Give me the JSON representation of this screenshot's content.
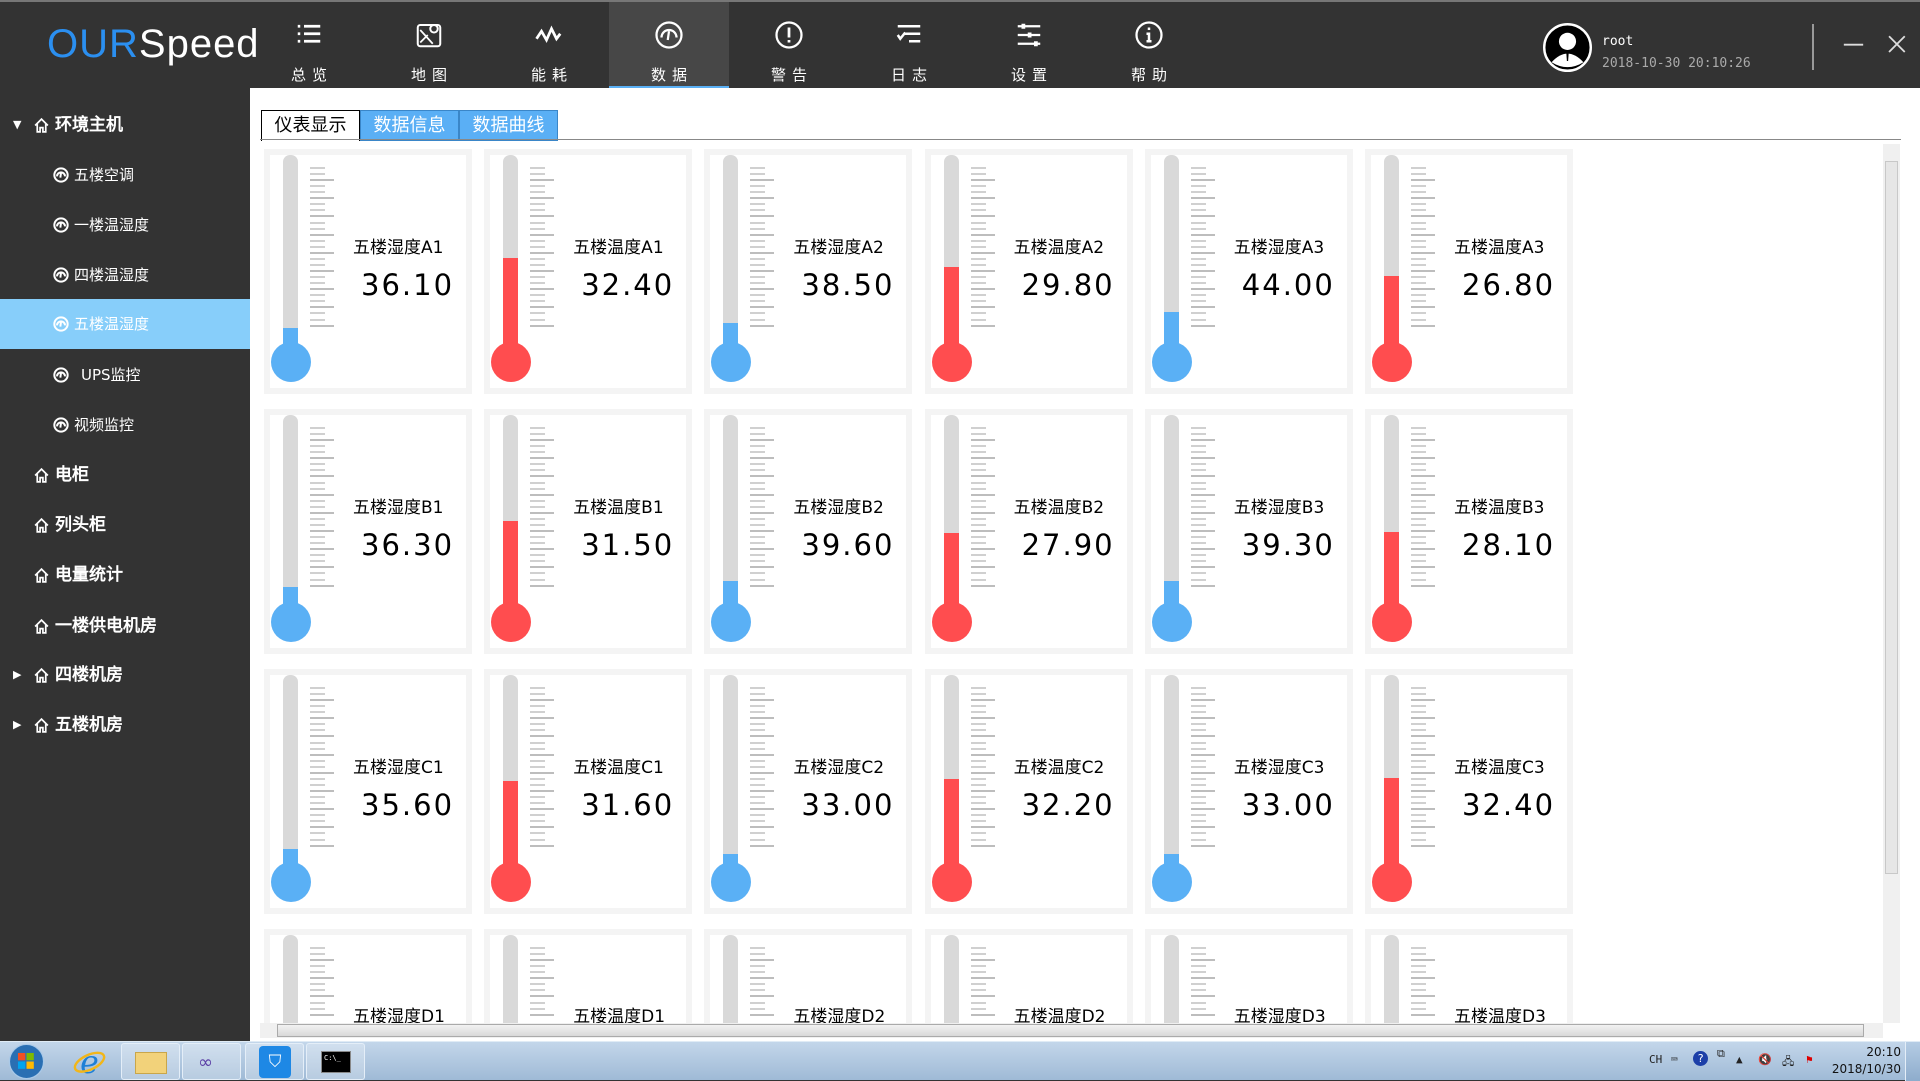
{
  "app": {
    "logo_part1": "OUR",
    "logo_part2": "Speed",
    "accent": "#5ab0f5",
    "logo_color": "#2b8ff0"
  },
  "nav": [
    {
      "label": "总览",
      "icon": "list-icon"
    },
    {
      "label": "地图",
      "icon": "map-icon"
    },
    {
      "label": "能耗",
      "icon": "pulse-icon"
    },
    {
      "label": "数据",
      "icon": "gauge-icon",
      "active": true
    },
    {
      "label": "警告",
      "icon": "alert-icon"
    },
    {
      "label": "日志",
      "icon": "log-icon"
    },
    {
      "label": "设置",
      "icon": "sliders-icon"
    },
    {
      "label": "帮助",
      "icon": "info-icon"
    }
  ],
  "user": {
    "name": "root",
    "datetime": "2018-10-30 20:10:26"
  },
  "sidebar": [
    {
      "label": "环境主机",
      "level": 0,
      "expanded": true
    },
    {
      "label": "五楼空调",
      "level": 1
    },
    {
      "label": "一楼温湿度",
      "level": 1
    },
    {
      "label": "四楼温湿度",
      "level": 1
    },
    {
      "label": "五楼温湿度",
      "level": 1,
      "active": true
    },
    {
      "label": "UPS监控",
      "level": 1
    },
    {
      "label": "视频监控",
      "level": 1
    },
    {
      "label": "电柜",
      "level": 0
    },
    {
      "label": "列头柜",
      "level": 0
    },
    {
      "label": "电量统计",
      "level": 0
    },
    {
      "label": "一楼供电机房",
      "level": 0
    },
    {
      "label": "四楼机房",
      "level": 0,
      "collapsed": true
    },
    {
      "label": "五楼机房",
      "level": 0,
      "collapsed": true
    }
  ],
  "tabs": [
    {
      "label": "仪表显示",
      "active": true
    },
    {
      "label": "数据信息"
    },
    {
      "label": "数据曲线"
    }
  ],
  "colors": {
    "humidity": "#5ab0f5",
    "temperature": "#ff4d4f"
  },
  "gauges": [
    {
      "label": "五楼湿度A1",
      "value": "36.10",
      "type": "humidity"
    },
    {
      "label": "五楼温度A1",
      "value": "32.40",
      "type": "temperature"
    },
    {
      "label": "五楼湿度A2",
      "value": "38.50",
      "type": "humidity"
    },
    {
      "label": "五楼温度A2",
      "value": "29.80",
      "type": "temperature"
    },
    {
      "label": "五楼湿度A3",
      "value": "44.00",
      "type": "humidity"
    },
    {
      "label": "五楼温度A3",
      "value": "26.80",
      "type": "temperature"
    },
    {
      "label": "五楼湿度B1",
      "value": "36.30",
      "type": "humidity"
    },
    {
      "label": "五楼温度B1",
      "value": "31.50",
      "type": "temperature"
    },
    {
      "label": "五楼湿度B2",
      "value": "39.60",
      "type": "humidity"
    },
    {
      "label": "五楼温度B2",
      "value": "27.90",
      "type": "temperature"
    },
    {
      "label": "五楼湿度B3",
      "value": "39.30",
      "type": "humidity"
    },
    {
      "label": "五楼温度B3",
      "value": "28.10",
      "type": "temperature"
    },
    {
      "label": "五楼湿度C1",
      "value": "35.60",
      "type": "humidity"
    },
    {
      "label": "五楼温度C1",
      "value": "31.60",
      "type": "temperature"
    },
    {
      "label": "五楼湿度C2",
      "value": "33.00",
      "type": "humidity"
    },
    {
      "label": "五楼温度C2",
      "value": "32.20",
      "type": "temperature"
    },
    {
      "label": "五楼湿度C3",
      "value": "33.00",
      "type": "humidity"
    },
    {
      "label": "五楼温度C3",
      "value": "32.40",
      "type": "temperature"
    },
    {
      "label": "五楼湿度D1",
      "type": "humidity"
    },
    {
      "label": "五楼温度D1",
      "type": "temperature"
    },
    {
      "label": "五楼湿度D2",
      "type": "humidity"
    },
    {
      "label": "五楼温度D2",
      "type": "temperature"
    },
    {
      "label": "五楼湿度D3",
      "type": "humidity"
    },
    {
      "label": "五楼温度D3",
      "type": "temperature"
    }
  ],
  "taskbar": {
    "apps": [
      "start-button",
      "ie-icon",
      "explorer-icon",
      "infinity-app-icon",
      "monitoring-icon",
      "cmd-icon"
    ],
    "lang": "CH",
    "time": "20:10",
    "date": "2018/10/30"
  }
}
